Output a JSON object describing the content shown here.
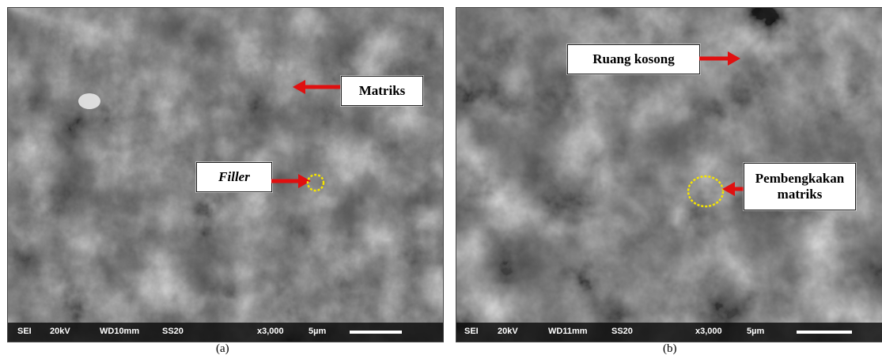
{
  "panels": [
    {
      "id": "a",
      "caption": "(a)",
      "labels": {
        "matrix": "Matriks",
        "filler": "Filler"
      },
      "scalebar": {
        "mode": "SEI",
        "voltage": "20kV",
        "wd": "WD10mm",
        "ss": "SS20",
        "mag": "x3,000",
        "scale": "5µm"
      }
    },
    {
      "id": "b",
      "caption": "(b)",
      "labels": {
        "void": "Ruang kosong",
        "swelling_line1": "Pembengkakan",
        "swelling_line2": "matriks"
      },
      "scalebar": {
        "mode": "SEI",
        "voltage": "20kV",
        "wd": "WD11mm",
        "ss": "SS20",
        "mag": "x3,000",
        "scale": "5µm"
      }
    }
  ],
  "colors": {
    "arrow": "#e01010",
    "highlight_circle": "#f5e400",
    "label_bg": "#ffffff"
  }
}
